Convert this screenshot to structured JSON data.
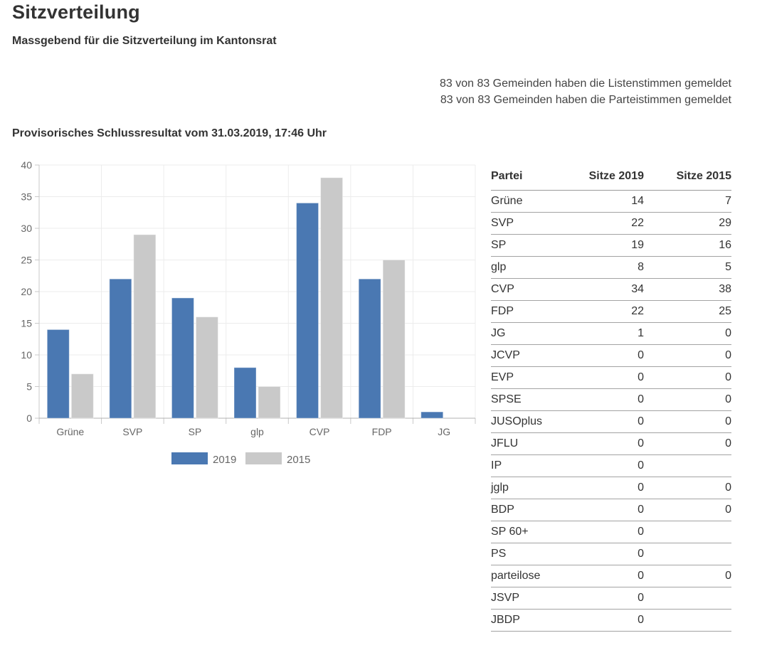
{
  "page": {
    "title": "Sitzverteilung",
    "subtitle": "Massgebend für die Sitzverteilung im Kantonsrat",
    "report_lines": [
      "83 von 83 Gemeinden haben die Listenstimmen gemeldet",
      "83 von 83 Gemeinden haben die Parteistimmen gemeldet"
    ],
    "status_line": "Provisorisches Schlussresultat vom 31.03.2019, 17:46 Uhr"
  },
  "chart_data": {
    "type": "bar",
    "title": "",
    "xlabel": "",
    "ylabel": "",
    "categories": [
      "Grüne",
      "SVP",
      "SP",
      "glp",
      "CVP",
      "FDP",
      "JG"
    ],
    "series": [
      {
        "name": "2019",
        "color": "#4a78b2",
        "values": [
          14,
          22,
          19,
          8,
          34,
          22,
          1
        ]
      },
      {
        "name": "2015",
        "color": "#c9c9c9",
        "values": [
          7,
          29,
          16,
          5,
          38,
          25,
          0
        ]
      }
    ],
    "ylim": [
      0,
      40
    ],
    "ytick_step": 5,
    "grid": true,
    "legend_position": "bottom"
  },
  "table": {
    "headers": [
      "Partei",
      "Sitze 2019",
      "Sitze 2015"
    ],
    "rows": [
      [
        "Grüne",
        "14",
        "7"
      ],
      [
        "SVP",
        "22",
        "29"
      ],
      [
        "SP",
        "19",
        "16"
      ],
      [
        "glp",
        "8",
        "5"
      ],
      [
        "CVP",
        "34",
        "38"
      ],
      [
        "FDP",
        "22",
        "25"
      ],
      [
        "JG",
        "1",
        "0"
      ],
      [
        "JCVP",
        "0",
        "0"
      ],
      [
        "EVP",
        "0",
        "0"
      ],
      [
        "SPSE",
        "0",
        "0"
      ],
      [
        "JUSOplus",
        "0",
        "0"
      ],
      [
        "JFLU",
        "0",
        "0"
      ],
      [
        "IP",
        "0",
        ""
      ],
      [
        "jglp",
        "0",
        "0"
      ],
      [
        "BDP",
        "0",
        "0"
      ],
      [
        "SP 60+",
        "0",
        ""
      ],
      [
        "PS",
        "0",
        ""
      ],
      [
        "parteilose",
        "0",
        "0"
      ],
      [
        "JSVP",
        "0",
        ""
      ],
      [
        "JBDP",
        "0",
        ""
      ]
    ]
  },
  "colors": {
    "accent_blue": "#4a78b2",
    "bar_gray": "#c9c9c9",
    "grid_line": "#ececec",
    "axis_line": "#c9c9c9",
    "x_axis_line": "#b0b0b0",
    "axis_text": "#666666",
    "table_border": "#a3a3a3"
  }
}
